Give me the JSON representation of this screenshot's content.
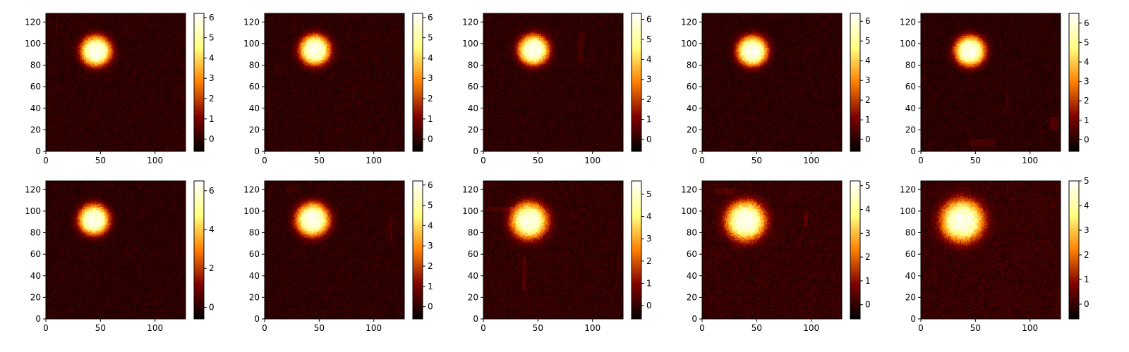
{
  "chart_data": [
    {
      "type": "heatmap",
      "colormap": "afmhot",
      "xlim": [
        0,
        128
      ],
      "ylim": [
        0,
        128
      ],
      "xticks": [
        0,
        50,
        100
      ],
      "yticks": [
        0,
        20,
        40,
        60,
        80,
        100,
        120
      ],
      "cbar_range": [
        -0.6,
        6.2
      ],
      "cbar_ticks": [
        0,
        1,
        2,
        3,
        4,
        5,
        6
      ],
      "blob": {
        "cx": 46,
        "cy": 93,
        "sigma": 10,
        "peak": 6.0
      },
      "artifacts": [
        {
          "x": [
            9,
            11
          ],
          "y": [
            108,
            120
          ],
          "level": 0.35
        }
      ]
    },
    {
      "type": "heatmap",
      "colormap": "afmhot",
      "xlim": [
        0,
        128
      ],
      "ylim": [
        0,
        128
      ],
      "xticks": [
        0,
        50,
        100
      ],
      "yticks": [
        0,
        20,
        40,
        60,
        80,
        100,
        120
      ],
      "cbar_range": [
        -0.6,
        6.2
      ],
      "cbar_ticks": [
        0,
        1,
        2,
        3,
        4,
        5,
        6
      ],
      "blob": {
        "cx": 46,
        "cy": 94,
        "sigma": 10,
        "peak": 6.0
      },
      "artifacts": []
    },
    {
      "type": "heatmap",
      "colormap": "afmhot",
      "xlim": [
        0,
        128
      ],
      "ylim": [
        0,
        128
      ],
      "xticks": [
        0,
        50,
        100
      ],
      "yticks": [
        0,
        20,
        40,
        60,
        80,
        100,
        120
      ],
      "cbar_range": [
        -0.6,
        6.3
      ],
      "cbar_ticks": [
        0,
        1,
        2,
        3,
        4,
        5,
        6
      ],
      "blob": {
        "cx": 46,
        "cy": 94,
        "sigma": 10,
        "peak": 6.1
      },
      "artifacts": [
        {
          "x": [
            87,
            91
          ],
          "y": [
            82,
            110
          ],
          "level": 0.4
        }
      ]
    },
    {
      "type": "heatmap",
      "colormap": "afmhot",
      "xlim": [
        0,
        128
      ],
      "ylim": [
        0,
        128
      ],
      "xticks": [
        0,
        50,
        100
      ],
      "yticks": [
        0,
        20,
        40,
        60,
        80,
        100,
        120
      ],
      "cbar_range": [
        -0.6,
        6.4
      ],
      "cbar_ticks": [
        0,
        1,
        2,
        3,
        4,
        5,
        6
      ],
      "blob": {
        "cx": 46,
        "cy": 93,
        "sigma": 10,
        "peak": 6.2
      },
      "artifacts": []
    },
    {
      "type": "heatmap",
      "colormap": "afmhot",
      "xlim": [
        0,
        128
      ],
      "ylim": [
        0,
        128
      ],
      "xticks": [
        0,
        50,
        100
      ],
      "yticks": [
        0,
        20,
        40,
        60,
        80,
        100,
        120
      ],
      "cbar_range": [
        -0.6,
        6.5
      ],
      "cbar_ticks": [
        0,
        1,
        2,
        3,
        4,
        5,
        6
      ],
      "blob": {
        "cx": 45,
        "cy": 93,
        "sigma": 10,
        "peak": 6.3
      },
      "artifacts": [
        {
          "x": [
            45,
            68
          ],
          "y": [
            5,
            11
          ],
          "level": 0.45
        },
        {
          "x": [
            118,
            126
          ],
          "y": [
            20,
            32
          ],
          "level": 0.5
        },
        {
          "x": [
            78,
            80
          ],
          "y": [
            35,
            55
          ],
          "level": 0.3
        }
      ]
    },
    {
      "type": "heatmap",
      "colormap": "afmhot",
      "xlim": [
        0,
        128
      ],
      "ylim": [
        0,
        128
      ],
      "xticks": [
        0,
        50,
        100
      ],
      "yticks": [
        0,
        20,
        40,
        60,
        80,
        100,
        120
      ],
      "cbar_range": [
        -0.6,
        6.5
      ],
      "cbar_ticks": [
        0,
        2,
        4,
        6
      ],
      "blob": {
        "cx": 44,
        "cy": 92,
        "sigma": 10,
        "peak": 6.3
      },
      "artifacts": []
    },
    {
      "type": "heatmap",
      "colormap": "afmhot",
      "xlim": [
        0,
        128
      ],
      "ylim": [
        0,
        128
      ],
      "xticks": [
        0,
        50,
        100
      ],
      "yticks": [
        0,
        20,
        40,
        60,
        80,
        100,
        120
      ],
      "cbar_range": [
        -0.6,
        6.2
      ],
      "cbar_ticks": [
        0,
        1,
        2,
        3,
        4,
        5,
        6
      ],
      "blob": {
        "cx": 44,
        "cy": 92,
        "sigma": 11,
        "peak": 6.0
      },
      "artifacts": [
        {
          "x": [
            114,
            117
          ],
          "y": [
            72,
            95
          ],
          "level": 0.35
        },
        {
          "x": [
            20,
            30
          ],
          "y": [
            118,
            122
          ],
          "level": 0.3
        }
      ]
    },
    {
      "type": "heatmap",
      "colormap": "afmhot",
      "xlim": [
        0,
        128
      ],
      "ylim": [
        0,
        128
      ],
      "xticks": [
        0,
        50,
        100
      ],
      "yticks": [
        0,
        20,
        40,
        60,
        80,
        100,
        120
      ],
      "cbar_range": [
        -0.6,
        5.6
      ],
      "cbar_ticks": [
        0,
        1,
        2,
        3,
        4,
        5
      ],
      "blob": {
        "cx": 42,
        "cy": 91,
        "sigma": 12,
        "peak": 5.3
      },
      "artifacts": [
        {
          "x": [
            36,
            39
          ],
          "y": [
            26,
            58
          ],
          "level": 0.45
        },
        {
          "x": [
            2,
            28
          ],
          "y": [
            100,
            104
          ],
          "level": 0.35
        }
      ]
    },
    {
      "type": "heatmap",
      "colormap": "afmhot",
      "xlim": [
        0,
        128
      ],
      "ylim": [
        0,
        128
      ],
      "xticks": [
        0,
        50,
        100
      ],
      "yticks": [
        0,
        20,
        40,
        60,
        80,
        100,
        120
      ],
      "cbar_range": [
        -0.6,
        5.2
      ],
      "cbar_ticks": [
        0,
        1,
        2,
        3,
        4,
        5
      ],
      "blob": {
        "cx": 40,
        "cy": 91,
        "sigma": 13,
        "peak": 5.0
      },
      "artifacts": [
        {
          "x": [
            93,
            97
          ],
          "y": [
            86,
            98
          ],
          "level": 0.45
        },
        {
          "x": [
            12,
            28
          ],
          "y": [
            116,
            121
          ],
          "level": 0.4
        }
      ]
    },
    {
      "type": "heatmap",
      "colormap": "afmhot",
      "xlim": [
        0,
        128
      ],
      "ylim": [
        0,
        128
      ],
      "xticks": [
        0,
        50,
        100
      ],
      "yticks": [
        0,
        20,
        40,
        60,
        80,
        100,
        120
      ],
      "cbar_range": [
        -0.6,
        5.0
      ],
      "cbar_ticks": [
        0,
        1,
        2,
        3,
        4,
        5
      ],
      "blob": {
        "cx": 38,
        "cy": 91,
        "sigma": 14,
        "peak": 4.8
      },
      "artifacts": []
    }
  ]
}
